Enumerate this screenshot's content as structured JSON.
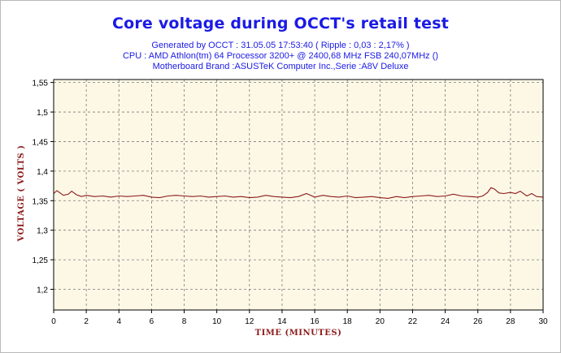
{
  "header": {
    "title": "Core voltage during OCCT's retail test",
    "subtitle_1": "Generated by OCCT : 31.05.05 17:53:40 ( Ripple : 0,03 : 2,17% )",
    "subtitle_2": "CPU : AMD Athlon(tm) 64 Processor 3200+ @ 2400,68 MHz FSB 240,07MHz ()",
    "subtitle_3": "Motherboard Brand :ASUSTeK Computer Inc.,Serie :A8V Deluxe"
  },
  "colors": {
    "title": "#1a1ae6",
    "line": "#8b1a1a",
    "plot_bg": "#fdf8e6",
    "axis_label": "#8b1a1a"
  },
  "chart_data": {
    "type": "line",
    "title": "Core voltage during OCCT's retail test",
    "xlabel": "TIME (MINUTES)",
    "ylabel": "VOLTAGE ( VOLTS )",
    "xlim": [
      0,
      30
    ],
    "ylim": [
      1.165,
      1.555
    ],
    "grid": true,
    "x_ticks": [
      0,
      2,
      4,
      6,
      8,
      10,
      12,
      14,
      16,
      18,
      20,
      22,
      24,
      26,
      28,
      30
    ],
    "y_ticks": [
      1.2,
      1.25,
      1.3,
      1.35,
      1.4,
      1.45,
      1.5,
      1.55
    ],
    "x_tick_labels": [
      "0",
      "2",
      "4",
      "6",
      "8",
      "10",
      "12",
      "14",
      "16",
      "18",
      "20",
      "22",
      "24",
      "26",
      "28",
      "30"
    ],
    "y_tick_labels": [
      "1,2",
      "1,25",
      "1,3",
      "1,35",
      "1,4",
      "1,45",
      "1,5",
      "1,55"
    ],
    "series": [
      {
        "x": [
          0,
          0.2,
          0.4,
          0.6,
          0.9,
          1.1,
          1.4,
          1.7,
          2.0,
          2.5,
          3.0,
          3.5,
          4.0,
          4.5,
          5.0,
          5.5,
          6.0,
          6.5,
          7.0,
          7.5,
          8.0,
          8.5,
          9.0,
          9.5,
          10.0,
          10.5,
          11.0,
          11.5,
          12.0,
          12.5,
          13.0,
          13.5,
          14.0,
          14.5,
          15.0,
          15.5,
          16.0,
          16.5,
          17.0,
          17.5,
          18.0,
          18.5,
          19.0,
          19.5,
          20.0,
          20.5,
          21.0,
          21.5,
          22.0,
          22.5,
          23.0,
          23.5,
          24.0,
          24.5,
          25.0,
          25.5,
          26.0,
          26.3,
          26.6,
          26.8,
          27.0,
          27.3,
          27.6,
          28.0,
          28.3,
          28.6,
          29.0,
          29.3,
          29.6,
          30.0
        ],
        "values": [
          1.362,
          1.367,
          1.363,
          1.359,
          1.361,
          1.366,
          1.36,
          1.357,
          1.359,
          1.357,
          1.358,
          1.356,
          1.358,
          1.357,
          1.358,
          1.359,
          1.356,
          1.355,
          1.358,
          1.359,
          1.358,
          1.357,
          1.358,
          1.356,
          1.357,
          1.358,
          1.356,
          1.357,
          1.355,
          1.356,
          1.359,
          1.357,
          1.356,
          1.355,
          1.357,
          1.362,
          1.356,
          1.359,
          1.357,
          1.356,
          1.358,
          1.355,
          1.356,
          1.357,
          1.355,
          1.354,
          1.357,
          1.355,
          1.357,
          1.358,
          1.359,
          1.357,
          1.358,
          1.361,
          1.358,
          1.357,
          1.356,
          1.358,
          1.364,
          1.372,
          1.37,
          1.363,
          1.362,
          1.364,
          1.362,
          1.366,
          1.358,
          1.362,
          1.357,
          1.356
        ]
      }
    ]
  }
}
